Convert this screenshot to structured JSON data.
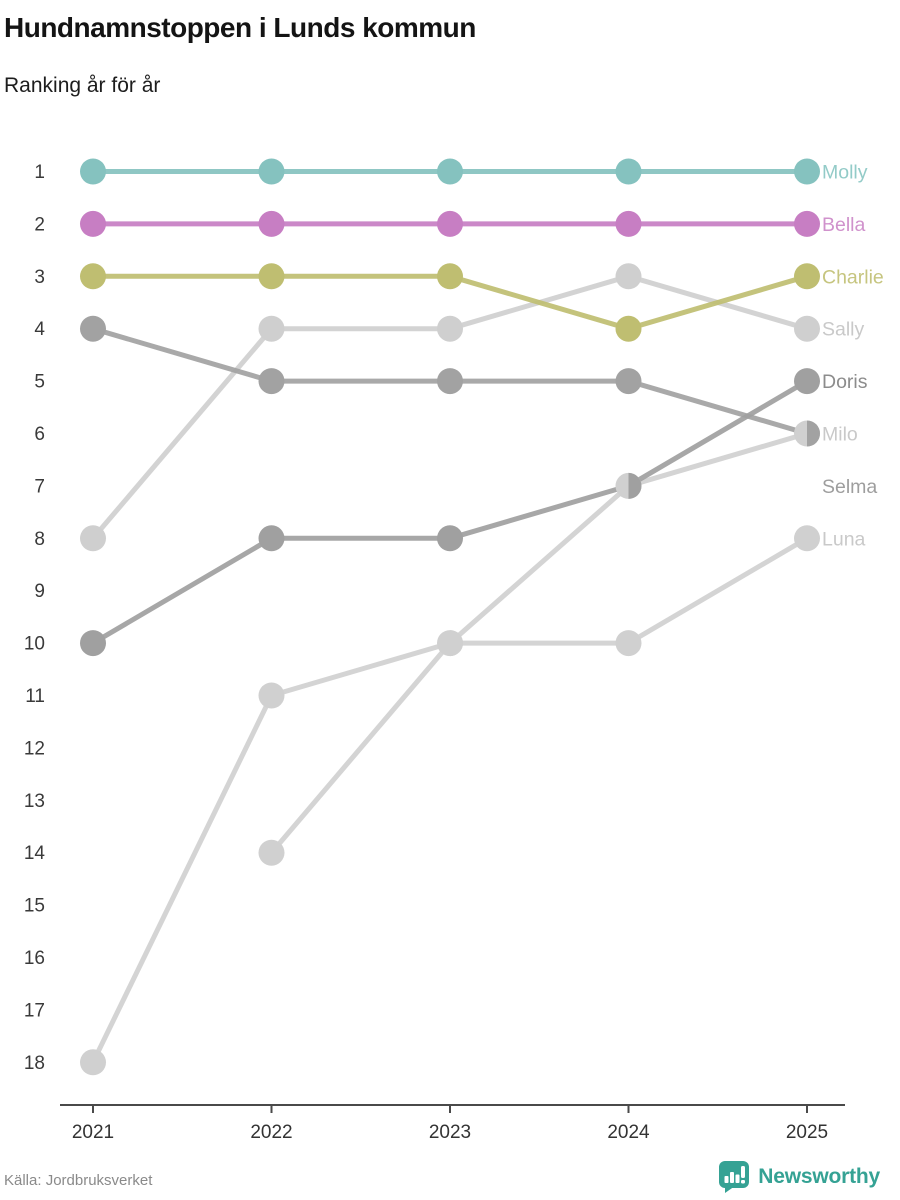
{
  "header": {
    "title": "Hundnamnstoppen i Lunds kommun",
    "subtitle": "Ranking år för år"
  },
  "footer": {
    "source": "Källa: Jordbruksverket",
    "brand": "Newsworthy",
    "brand_color": "#35a294"
  },
  "chart_data": {
    "type": "line",
    "variant": "bump-ranking",
    "x": [
      2021,
      2022,
      2023,
      2024,
      2025
    ],
    "rank_axis": [
      1,
      2,
      3,
      4,
      5,
      6,
      7,
      8,
      9,
      10,
      11,
      12,
      13,
      14,
      15,
      16,
      17,
      18
    ],
    "rank_axis_note": "rank 1 at top, axis inverted",
    "axis_color": "#4a4a4a",
    "tick_label_color": "#3a3a3a",
    "legend_position": "right-of-last-point",
    "grid": false,
    "series": [
      {
        "name": "Sally",
        "values": [
          8,
          4,
          4,
          3,
          4
        ],
        "color": "#cfcfcf",
        "label_color": "#c9c9c9"
      },
      {
        "name": "Luna",
        "values": [
          18,
          11,
          10,
          10,
          8
        ],
        "color": "#d0d0d0",
        "label_color": "#c9c9c9"
      },
      {
        "name": "Milo",
        "values": [
          null,
          14,
          10,
          7,
          6
        ],
        "color": "#d0d0d0",
        "label_color": "#c9c9c9"
      },
      {
        "name": "Selma",
        "values": [
          4,
          5,
          5,
          5,
          6
        ],
        "color": "#a2a2a2",
        "label_color": "#9e9e9e",
        "label_slot": 7
      },
      {
        "name": "Doris",
        "values": [
          10,
          8,
          8,
          7,
          5
        ],
        "color": "#a0a0a0",
        "label_color": "#8c8c8c"
      },
      {
        "name": "Charlie",
        "values": [
          3,
          3,
          3,
          4,
          3
        ],
        "color": "#bfbe71",
        "label_color": "#c6c57f"
      },
      {
        "name": "Bella",
        "values": [
          2,
          2,
          2,
          2,
          2
        ],
        "color": "#c77ec3",
        "label_color": "#d092cc"
      },
      {
        "name": "Molly",
        "values": [
          1,
          1,
          1,
          1,
          1
        ],
        "color": "#85c2bf",
        "label_color": "#93cbc8"
      }
    ]
  }
}
